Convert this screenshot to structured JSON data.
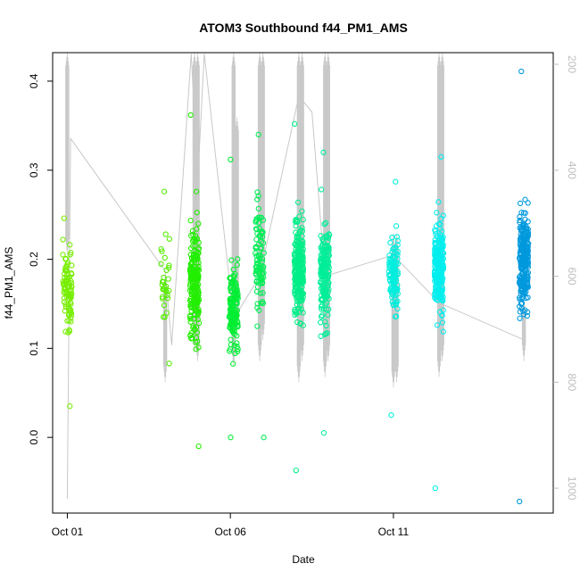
{
  "chart_data": {
    "type": "scatter",
    "title": "ATOM3 Southbound f44_PM1_AMS",
    "xlabel": "Date",
    "ylabel": "f44_PM1_AMS",
    "x_ticks": [
      "Oct 01",
      "Oct 06",
      "Oct 11"
    ],
    "x_tick_days": [
      1,
      6,
      11
    ],
    "xlim_days": [
      0.55,
      15.9
    ],
    "ylim": [
      -0.085,
      0.432
    ],
    "y_ticks": [
      0.0,
      0.1,
      0.2,
      0.3,
      0.4
    ],
    "right_axis": {
      "ylim": [
        1047,
        178
      ],
      "ticks": [
        200,
        400,
        600,
        800,
        1000
      ],
      "color": "#bebebe"
    },
    "grid": false,
    "legend": "none",
    "series": [
      {
        "day": 1.0,
        "center": 0.165,
        "spread": 0.04,
        "min": 0.035,
        "max": 0.246,
        "n": 90,
        "color": "#77ee00"
      },
      {
        "day": 4.0,
        "center": 0.18,
        "spread": 0.035,
        "min": 0.083,
        "max": 0.276,
        "n": 30,
        "color": "#55ee00"
      },
      {
        "day": 4.9,
        "center": 0.175,
        "spread": 0.055,
        "min": -0.01,
        "max": 0.362,
        "n": 200,
        "color": "#22ee00"
      },
      {
        "day": 6.1,
        "center": 0.14,
        "spread": 0.04,
        "min": 0.0,
        "max": 0.312,
        "n": 140,
        "color": "#00ee33"
      },
      {
        "day": 6.9,
        "center": 0.2,
        "spread": 0.05,
        "min": 0.0,
        "max": 0.34,
        "n": 90,
        "color": "#00ee55"
      },
      {
        "day": 8.1,
        "center": 0.19,
        "spread": 0.045,
        "min": -0.037,
        "max": 0.352,
        "n": 240,
        "color": "#00ee88"
      },
      {
        "day": 8.9,
        "center": 0.185,
        "spread": 0.045,
        "min": 0.005,
        "max": 0.32,
        "n": 170,
        "color": "#00ee99"
      },
      {
        "day": 11.0,
        "center": 0.185,
        "spread": 0.035,
        "min": 0.025,
        "max": 0.287,
        "n": 110,
        "color": "#00eedd"
      },
      {
        "day": 12.4,
        "center": 0.19,
        "spread": 0.04,
        "min": -0.057,
        "max": 0.315,
        "n": 240,
        "color": "#00eeee"
      },
      {
        "day": 15.0,
        "center": 0.2,
        "spread": 0.045,
        "min": -0.072,
        "max": 0.411,
        "n": 250,
        "color": "#0099dd"
      }
    ],
    "altitude_trace": {
      "color": "#c8c8c8",
      "path_days": [
        1.0,
        1.1,
        4.0,
        4.2,
        4.8,
        5.0,
        5.2,
        6.1,
        6.5,
        6.9,
        8.1,
        8.5,
        8.9,
        11.0,
        12.4,
        15.0
      ],
      "path_alt": [
        1020,
        340,
        590,
        730,
        180,
        420,
        180,
        680,
        640,
        600,
        260,
        290,
        600,
        560,
        650,
        720
      ],
      "spike_days": [
        1.0,
        4.0,
        4.9,
        5.0,
        6.1,
        6.2,
        6.9,
        7.0,
        8.1,
        8.2,
        8.9,
        9.0,
        11.0,
        11.1,
        12.4,
        12.5,
        15.0
      ],
      "spike_top": [
        178,
        600,
        178,
        178,
        178,
        300,
        178,
        178,
        178,
        178,
        178,
        178,
        520,
        520,
        178,
        178,
        640
      ],
      "spike_bottom": [
        560,
        800,
        740,
        760,
        770,
        700,
        760,
        720,
        800,
        760,
        790,
        760,
        810,
        800,
        790,
        760,
        760
      ]
    }
  }
}
